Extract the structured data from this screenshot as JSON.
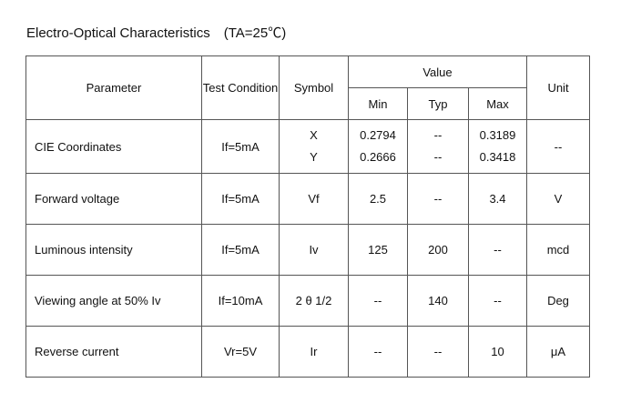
{
  "title": "Electro-Optical Characteristics　(TA=25℃)",
  "headers": {
    "parameter": "Parameter",
    "test_condition": "Test Condition",
    "symbol": "Symbol",
    "value": "Value",
    "min": "Min",
    "typ": "Typ",
    "max": "Max",
    "unit": "Unit"
  },
  "cie": {
    "parameter": "CIE Coordinates",
    "condition": "If=5mA",
    "symbol_x": "X",
    "min_x": "0.2794",
    "typ_x": "--",
    "max_x": "0.3189",
    "symbol_y": "Y",
    "min_y": "0.2666",
    "typ_y": "--",
    "max_y": "0.3418",
    "unit": "--"
  },
  "rows": [
    {
      "parameter": "Forward voltage",
      "condition": "If=5mA",
      "symbol": "Vf",
      "min": "2.5",
      "typ": "--",
      "max": "3.4",
      "unit": "V"
    },
    {
      "parameter": "Luminous intensity",
      "condition": "If=5mA",
      "symbol": "Iv",
      "min": "125",
      "typ": "200",
      "max": "--",
      "unit": "mcd"
    },
    {
      "parameter": "Viewing angle at 50% Iv",
      "condition": "If=10mA",
      "symbol": "2 θ 1/2",
      "min": "--",
      "typ": "140",
      "max": "--",
      "unit": "Deg"
    },
    {
      "parameter": "Reverse current",
      "condition": "Vr=5V",
      "symbol": "Ir",
      "min": "--",
      "typ": "--",
      "max": "10",
      "unit": "μA"
    }
  ]
}
